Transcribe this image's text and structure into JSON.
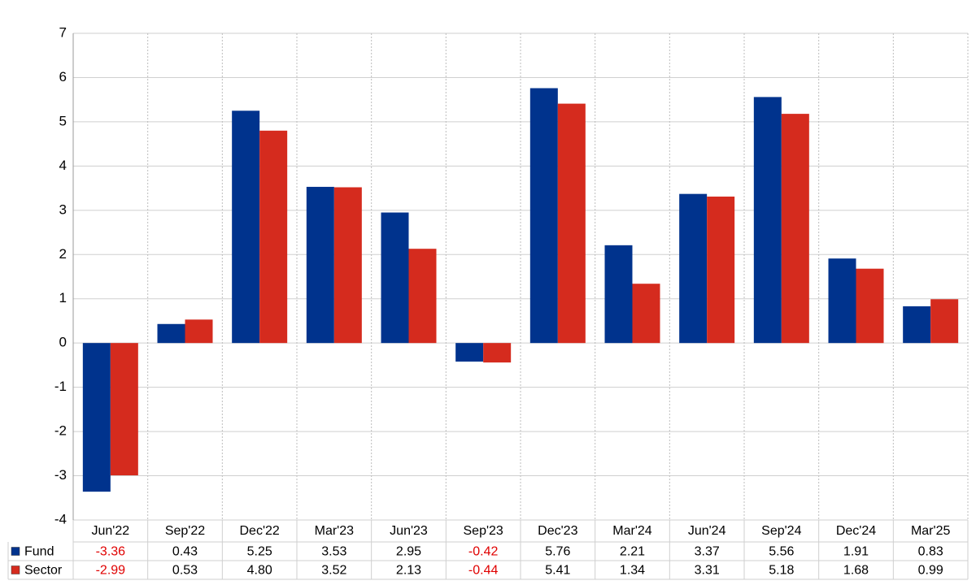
{
  "chart_data": {
    "type": "bar",
    "categories": [
      "Jun'22",
      "Sep'22",
      "Dec'22",
      "Mar'23",
      "Jun'23",
      "Sep'23",
      "Dec'23",
      "Mar'24",
      "Jun'24",
      "Sep'24",
      "Dec'24",
      "Mar'25"
    ],
    "series": [
      {
        "name": "Fund",
        "color": "#00338d",
        "values": [
          -3.36,
          0.43,
          5.25,
          3.53,
          2.95,
          -0.42,
          5.76,
          2.21,
          3.37,
          5.56,
          1.91,
          0.83
        ],
        "value_labels": [
          "-3.36",
          "0.43",
          "5.25",
          "3.53",
          "2.95",
          "-0.42",
          "5.76",
          "2.21",
          "3.37",
          "5.56",
          "1.91",
          "0.83"
        ]
      },
      {
        "name": "Sector",
        "color": "#d52b1e",
        "values": [
          -2.99,
          0.53,
          4.8,
          3.52,
          2.13,
          -0.44,
          5.41,
          1.34,
          3.31,
          5.18,
          1.68,
          0.99
        ],
        "value_labels": [
          "-2.99",
          "0.53",
          "4.80",
          "3.52",
          "2.13",
          "-0.44",
          "5.41",
          "1.34",
          "3.31",
          "5.18",
          "1.68",
          "0.99"
        ]
      }
    ],
    "ylim": [
      -4,
      7
    ],
    "yticks": [
      -4,
      -3,
      -2,
      -1,
      0,
      1,
      2,
      3,
      4,
      5,
      6,
      7
    ],
    "grid": true
  }
}
